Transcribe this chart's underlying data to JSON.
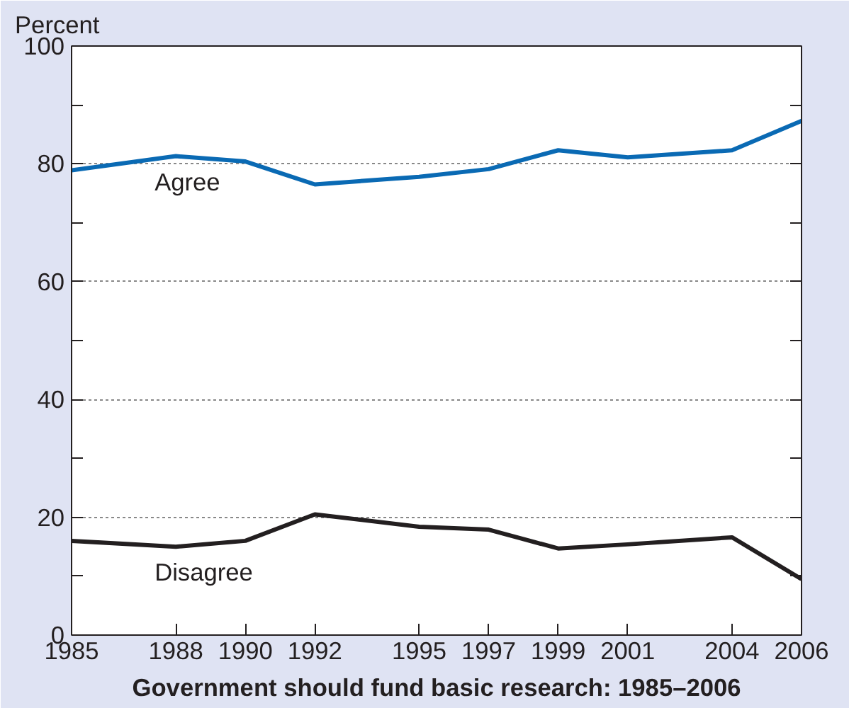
{
  "chart_data": {
    "type": "line",
    "title": "Government should fund basic research: 1985–2006",
    "ylabel": "Percent",
    "x": [
      1985,
      1988,
      1990,
      1992,
      1995,
      1997,
      1999,
      2001,
      2004,
      2006
    ],
    "series": [
      {
        "name": "Agree",
        "color": "#0a6ab4",
        "values": [
          78.9,
          81.3,
          80.4,
          76.5,
          77.8,
          79.1,
          82.3,
          81.1,
          82.3,
          87.3
        ]
      },
      {
        "name": "Disagree",
        "color": "#231f20",
        "values": [
          16.0,
          15.0,
          16.0,
          20.5,
          18.4,
          17.9,
          14.7,
          15.4,
          16.6,
          9.5
        ]
      }
    ],
    "xlim": [
      1985,
      2006
    ],
    "xticks": [
      1985,
      1988,
      1990,
      1992,
      1995,
      1997,
      1999,
      2001,
      2004,
      2006
    ],
    "ylim": [
      0,
      100
    ],
    "yticks": [
      0,
      20,
      40,
      60,
      80,
      100
    ],
    "grid": "y",
    "legend": false,
    "marker": "none",
    "line_style": "solid"
  }
}
